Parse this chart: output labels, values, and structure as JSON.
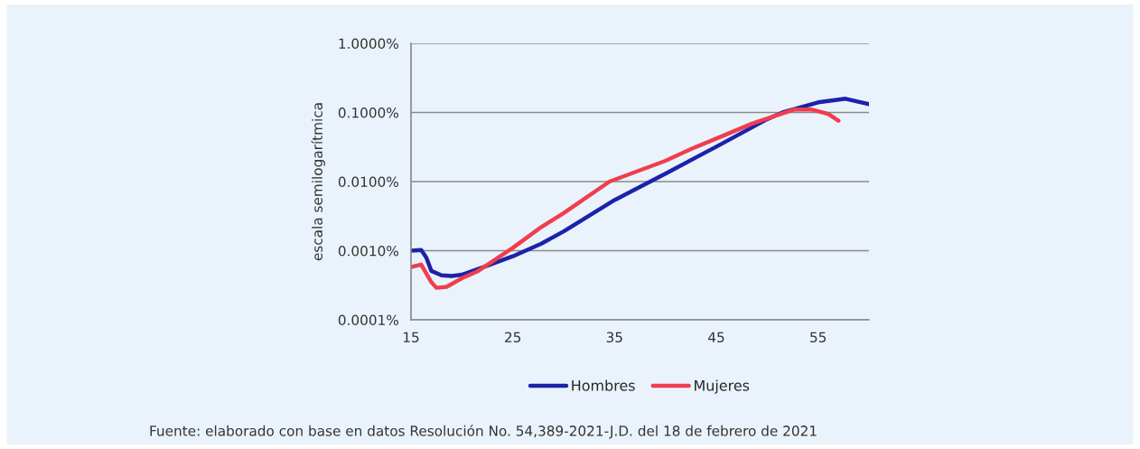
{
  "chart_data": {
    "type": "line",
    "ylabel": "escala semilogarítmica",
    "log": "y",
    "grid": "y",
    "legend": "bottom",
    "line_style": "solid",
    "marker": "none",
    "xlim": [
      15,
      60
    ],
    "xticks": [
      15,
      25,
      35,
      45,
      55
    ],
    "ylim": [
      0.0001,
      1
    ],
    "yticks": [
      {
        "value": 0.0001,
        "label": "0.0001%"
      },
      {
        "value": 0.001,
        "label": "0.0010%"
      },
      {
        "value": 0.01,
        "label": "0.0100%"
      },
      {
        "value": 0.1,
        "label": "0.1000%"
      },
      {
        "value": 1,
        "label": "1.0000%"
      }
    ],
    "series": [
      {
        "name": "Hombres",
        "color": "#1c22a8",
        "x": [
          15,
          16,
          16.5,
          17,
          18,
          19,
          20,
          22,
          25,
          27.8,
          30,
          35,
          38.5,
          40,
          45,
          50,
          51.5,
          55,
          57.7,
          60
        ],
        "values": [
          0.001,
          0.00102,
          0.0008,
          0.00051,
          0.00044,
          0.00043,
          0.00045,
          0.00057,
          0.00083,
          0.00126,
          0.0019,
          0.0054,
          0.01,
          0.013,
          0.032,
          0.08,
          0.1,
          0.14,
          0.158,
          0.132
        ]
      },
      {
        "name": "Mujeres",
        "color": "#ef3e4f",
        "x": [
          15,
          16,
          17,
          17.5,
          18.5,
          20,
          21.5,
          25,
          27.8,
          30,
          34.5,
          40,
          42.6,
          45,
          48.5,
          52.6,
          54.4,
          56,
          57
        ],
        "values": [
          0.00058,
          0.00063,
          0.00035,
          0.00029,
          0.0003,
          0.0004,
          0.0005,
          0.0011,
          0.0022,
          0.0035,
          0.01,
          0.02,
          0.03,
          0.042,
          0.069,
          0.11,
          0.11,
          0.095,
          0.076
        ]
      }
    ],
    "annotations": [
      "Fuente: elaborado con base en datos Resolución No. 54,389-2021-J.D. del 18 de febrero de 2021"
    ]
  }
}
